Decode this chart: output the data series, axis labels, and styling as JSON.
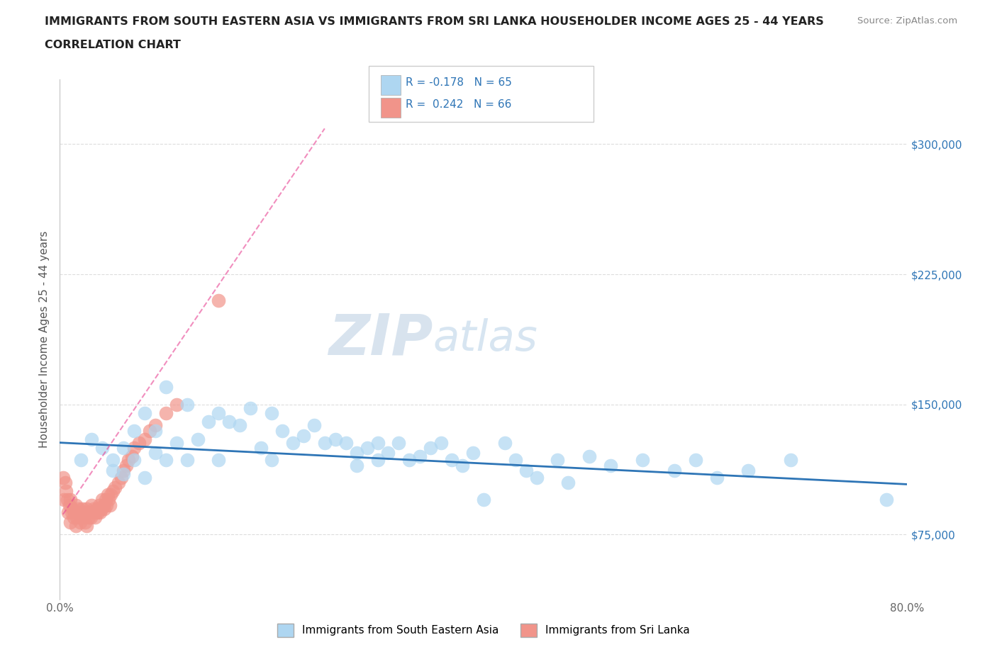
{
  "title_line1": "IMMIGRANTS FROM SOUTH EASTERN ASIA VS IMMIGRANTS FROM SRI LANKA HOUSEHOLDER INCOME AGES 25 - 44 YEARS",
  "title_line2": "CORRELATION CHART",
  "source_text": "Source: ZipAtlas.com",
  "ylabel": "Householder Income Ages 25 - 44 years",
  "xlim": [
    0.0,
    0.8
  ],
  "ylim": [
    37500,
    337500
  ],
  "yticks": [
    75000,
    150000,
    225000,
    300000
  ],
  "ytick_labels": [
    "$75,000",
    "$150,000",
    "$225,000",
    "$300,000"
  ],
  "xticks": [
    0.0,
    0.1,
    0.2,
    0.3,
    0.4,
    0.5,
    0.6,
    0.7,
    0.8
  ],
  "xtick_labels": [
    "0.0%",
    "",
    "",
    "",
    "",
    "",
    "",
    "",
    "80.0%"
  ],
  "legend_r1": "R = -0.178",
  "legend_n1": "N = 65",
  "legend_r2": "R =  0.242",
  "legend_n2": "N = 66",
  "watermark": "ZIPatlas",
  "color_blue": "#AED6F1",
  "color_pink": "#F1948A",
  "color_blue_line": "#2E75B6",
  "color_pink_line": "#E84393",
  "color_title": "#222222",
  "background_color": "#FFFFFF",
  "grid_color": "#DDDDDD",
  "blue_scatter_x": [
    0.02,
    0.03,
    0.04,
    0.05,
    0.05,
    0.06,
    0.06,
    0.07,
    0.07,
    0.08,
    0.08,
    0.09,
    0.09,
    0.1,
    0.1,
    0.11,
    0.12,
    0.12,
    0.13,
    0.14,
    0.15,
    0.15,
    0.16,
    0.17,
    0.18,
    0.19,
    0.2,
    0.2,
    0.21,
    0.22,
    0.23,
    0.24,
    0.25,
    0.26,
    0.27,
    0.28,
    0.28,
    0.29,
    0.3,
    0.3,
    0.31,
    0.32,
    0.33,
    0.34,
    0.35,
    0.36,
    0.37,
    0.38,
    0.39,
    0.4,
    0.42,
    0.43,
    0.44,
    0.45,
    0.47,
    0.48,
    0.5,
    0.52,
    0.55,
    0.58,
    0.6,
    0.62,
    0.65,
    0.69,
    0.78
  ],
  "blue_scatter_y": [
    118000,
    130000,
    125000,
    118000,
    112000,
    125000,
    110000,
    135000,
    118000,
    145000,
    108000,
    135000,
    122000,
    160000,
    118000,
    128000,
    150000,
    118000,
    130000,
    140000,
    145000,
    118000,
    140000,
    138000,
    148000,
    125000,
    145000,
    118000,
    135000,
    128000,
    132000,
    138000,
    128000,
    130000,
    128000,
    122000,
    115000,
    125000,
    128000,
    118000,
    122000,
    128000,
    118000,
    120000,
    125000,
    128000,
    118000,
    115000,
    122000,
    95000,
    128000,
    118000,
    112000,
    108000,
    118000,
    105000,
    120000,
    115000,
    118000,
    112000,
    118000,
    108000,
    112000,
    118000,
    95000
  ],
  "pink_scatter_x": [
    0.003,
    0.004,
    0.005,
    0.006,
    0.007,
    0.008,
    0.009,
    0.01,
    0.01,
    0.011,
    0.012,
    0.013,
    0.014,
    0.015,
    0.015,
    0.016,
    0.017,
    0.018,
    0.019,
    0.02,
    0.02,
    0.021,
    0.022,
    0.023,
    0.024,
    0.025,
    0.025,
    0.026,
    0.027,
    0.028,
    0.029,
    0.03,
    0.031,
    0.032,
    0.033,
    0.034,
    0.035,
    0.036,
    0.037,
    0.038,
    0.039,
    0.04,
    0.041,
    0.042,
    0.043,
    0.044,
    0.045,
    0.046,
    0.047,
    0.048,
    0.05,
    0.052,
    0.055,
    0.058,
    0.06,
    0.063,
    0.065,
    0.068,
    0.07,
    0.075,
    0.08,
    0.085,
    0.09,
    0.1,
    0.11,
    0.15
  ],
  "pink_scatter_y": [
    108000,
    95000,
    105000,
    100000,
    95000,
    88000,
    92000,
    95000,
    82000,
    88000,
    90000,
    85000,
    88000,
    92000,
    80000,
    85000,
    88000,
    90000,
    82000,
    88000,
    85000,
    90000,
    85000,
    88000,
    82000,
    90000,
    80000,
    88000,
    85000,
    88000,
    85000,
    92000,
    88000,
    90000,
    85000,
    88000,
    90000,
    88000,
    92000,
    88000,
    90000,
    95000,
    92000,
    90000,
    95000,
    92000,
    98000,
    95000,
    92000,
    98000,
    100000,
    102000,
    105000,
    108000,
    112000,
    115000,
    118000,
    120000,
    125000,
    128000,
    130000,
    135000,
    138000,
    145000,
    150000,
    210000
  ],
  "pink_line_x": [
    0.003,
    0.25
  ],
  "blue_line_x": [
    0.0,
    0.8
  ],
  "blue_line_slope": -30000,
  "blue_line_intercept": 128000,
  "pink_line_slope": 900000,
  "pink_line_intercept": 84000
}
